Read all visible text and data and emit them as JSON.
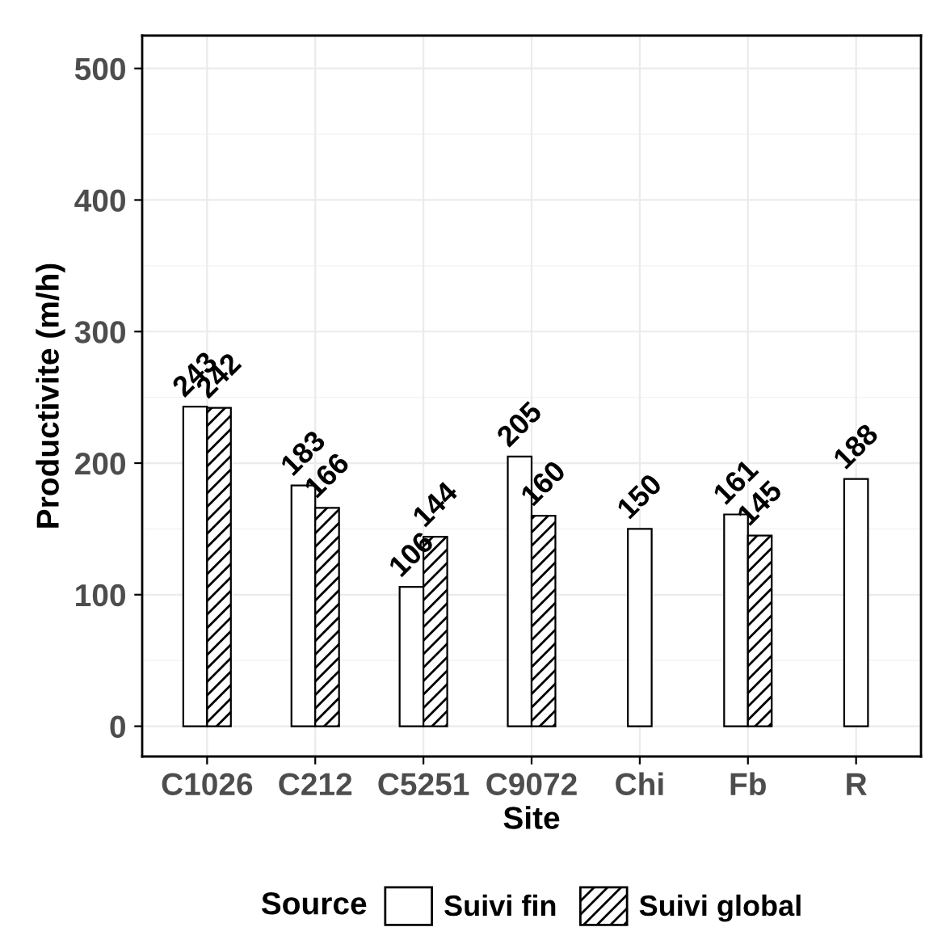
{
  "chart_data": {
    "type": "bar",
    "xlabel": "Site",
    "ylabel": "Productivite (m/h)",
    "legend_title": "Source",
    "categories": [
      "C1026",
      "C212",
      "C5251",
      "C9072",
      "Chi",
      "Fb",
      "R"
    ],
    "series": [
      {
        "name": "Suivi fin",
        "color": "#ffffff",
        "values": [
          243,
          183,
          106,
          205,
          150,
          161,
          188
        ]
      },
      {
        "name": "Suivi global",
        "color": "#000000",
        "values": [
          242,
          166,
          144,
          160,
          null,
          145,
          null
        ]
      }
    ],
    "ylim": [
      -23,
      525
    ],
    "yticks": [
      0,
      100,
      200,
      300,
      400,
      500
    ],
    "grid": true,
    "legend": "bottom",
    "data_labels": true
  }
}
